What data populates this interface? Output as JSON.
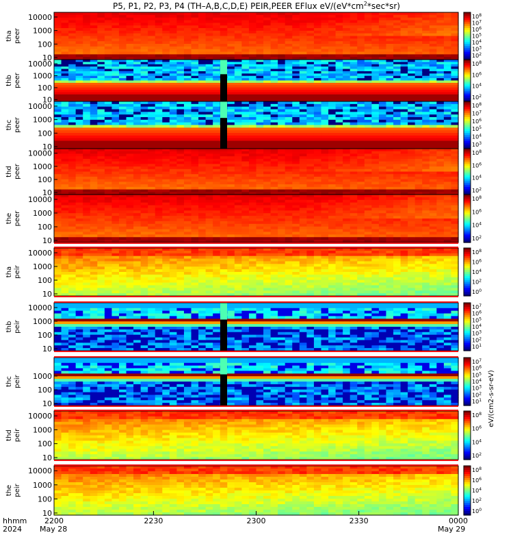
{
  "chart_data": {
    "type": "heatmap",
    "title": "P5, P1, P2, P3, P4 (TH-A,B,C,D,E) PEIR,PEER EFlux eV/(eV*cm2*sec*sr)",
    "title_main": "P5, P1, P2, P3, P4 (TH–A,B,C,D,E) PEIR,PEER EFlux eV/(eV*cm",
    "title_sup": "2",
    "title_tail": "*sec*sr)",
    "x": {
      "ticks": [
        "2200",
        "2230",
        "2300",
        "2330",
        "0000"
      ],
      "label_rows": [
        "hhmm",
        "2024"
      ],
      "start_date": "May 28",
      "end_date": "May 29"
    },
    "colorbar_label": "eV/(cm2-s-sr-eV)",
    "panels": [
      {
        "line1": "tha",
        "line2": "peer",
        "yticks": [
          "10000",
          "1000",
          "100",
          "10"
        ],
        "cbar_exps": [
          "8",
          "7",
          "6",
          "5",
          "4",
          "3",
          "2"
        ],
        "profile": "peer_full",
        "gap": false
      },
      {
        "line1": "thb",
        "line2": "peer",
        "yticks": [
          "10000",
          "1000",
          "100",
          "10"
        ],
        "cbar_exps": [
          "8",
          "6",
          "4",
          "2"
        ],
        "profile": "peer_noisy",
        "gap": true
      },
      {
        "line1": "thc",
        "line2": "peer",
        "yticks": [
          "10000",
          "1000",
          "100",
          "10"
        ],
        "cbar_exps": [
          "8",
          "7",
          "6",
          "5",
          "4",
          "3"
        ],
        "profile": "peer_noisier",
        "gap": true
      },
      {
        "line1": "thd",
        "line2": "peer",
        "yticks": [
          "10000",
          "1000",
          "100",
          "10"
        ],
        "cbar_exps": [
          "8",
          "6",
          "4",
          "2"
        ],
        "profile": "peer_full",
        "gap": false
      },
      {
        "line1": "the",
        "line2": "peer",
        "yticks": [
          "10000",
          "1000",
          "100",
          "10"
        ],
        "cbar_exps": [
          "8",
          "6",
          "4",
          "2"
        ],
        "profile": "peer_full",
        "gap": false
      },
      {
        "line1": "tha",
        "line2": "peir",
        "yticks": [
          "10000",
          "1000",
          "100",
          "10"
        ],
        "cbar_exps": [
          "8",
          "6",
          "4",
          "2",
          "0"
        ],
        "profile": "peir_green",
        "gap": false
      },
      {
        "line1": "thb",
        "line2": "peir",
        "yticks": [
          "10000",
          "1000",
          "100",
          "10"
        ],
        "cbar_exps": [
          "7",
          "6",
          "5",
          "4",
          "3",
          "2",
          "1"
        ],
        "profile": "peir_noisy",
        "gap": true
      },
      {
        "line1": "thc",
        "line2": "peir",
        "yticks": [
          "1000",
          "100",
          "10"
        ],
        "cbar_exps": [
          "7",
          "6",
          "5",
          "4",
          "3",
          "2",
          "1"
        ],
        "profile": "peir_noisy",
        "gap": true
      },
      {
        "line1": "thd",
        "line2": "peir",
        "yticks": [
          "10000",
          "1000",
          "100",
          "10"
        ],
        "cbar_exps": [
          "8",
          "6",
          "4",
          "2"
        ],
        "profile": "peir_green",
        "gap": false
      },
      {
        "line1": "the",
        "line2": "peir",
        "yticks": [
          "10000",
          "1000",
          "100",
          "10"
        ],
        "cbar_exps": [
          "8",
          "6",
          "4",
          "2",
          "0"
        ],
        "profile": "peir_green",
        "gap": false
      }
    ],
    "colors": {
      "frame": "#000000",
      "stripe_red": "#ee1111",
      "stripe_yellow": "#ffee44"
    }
  }
}
